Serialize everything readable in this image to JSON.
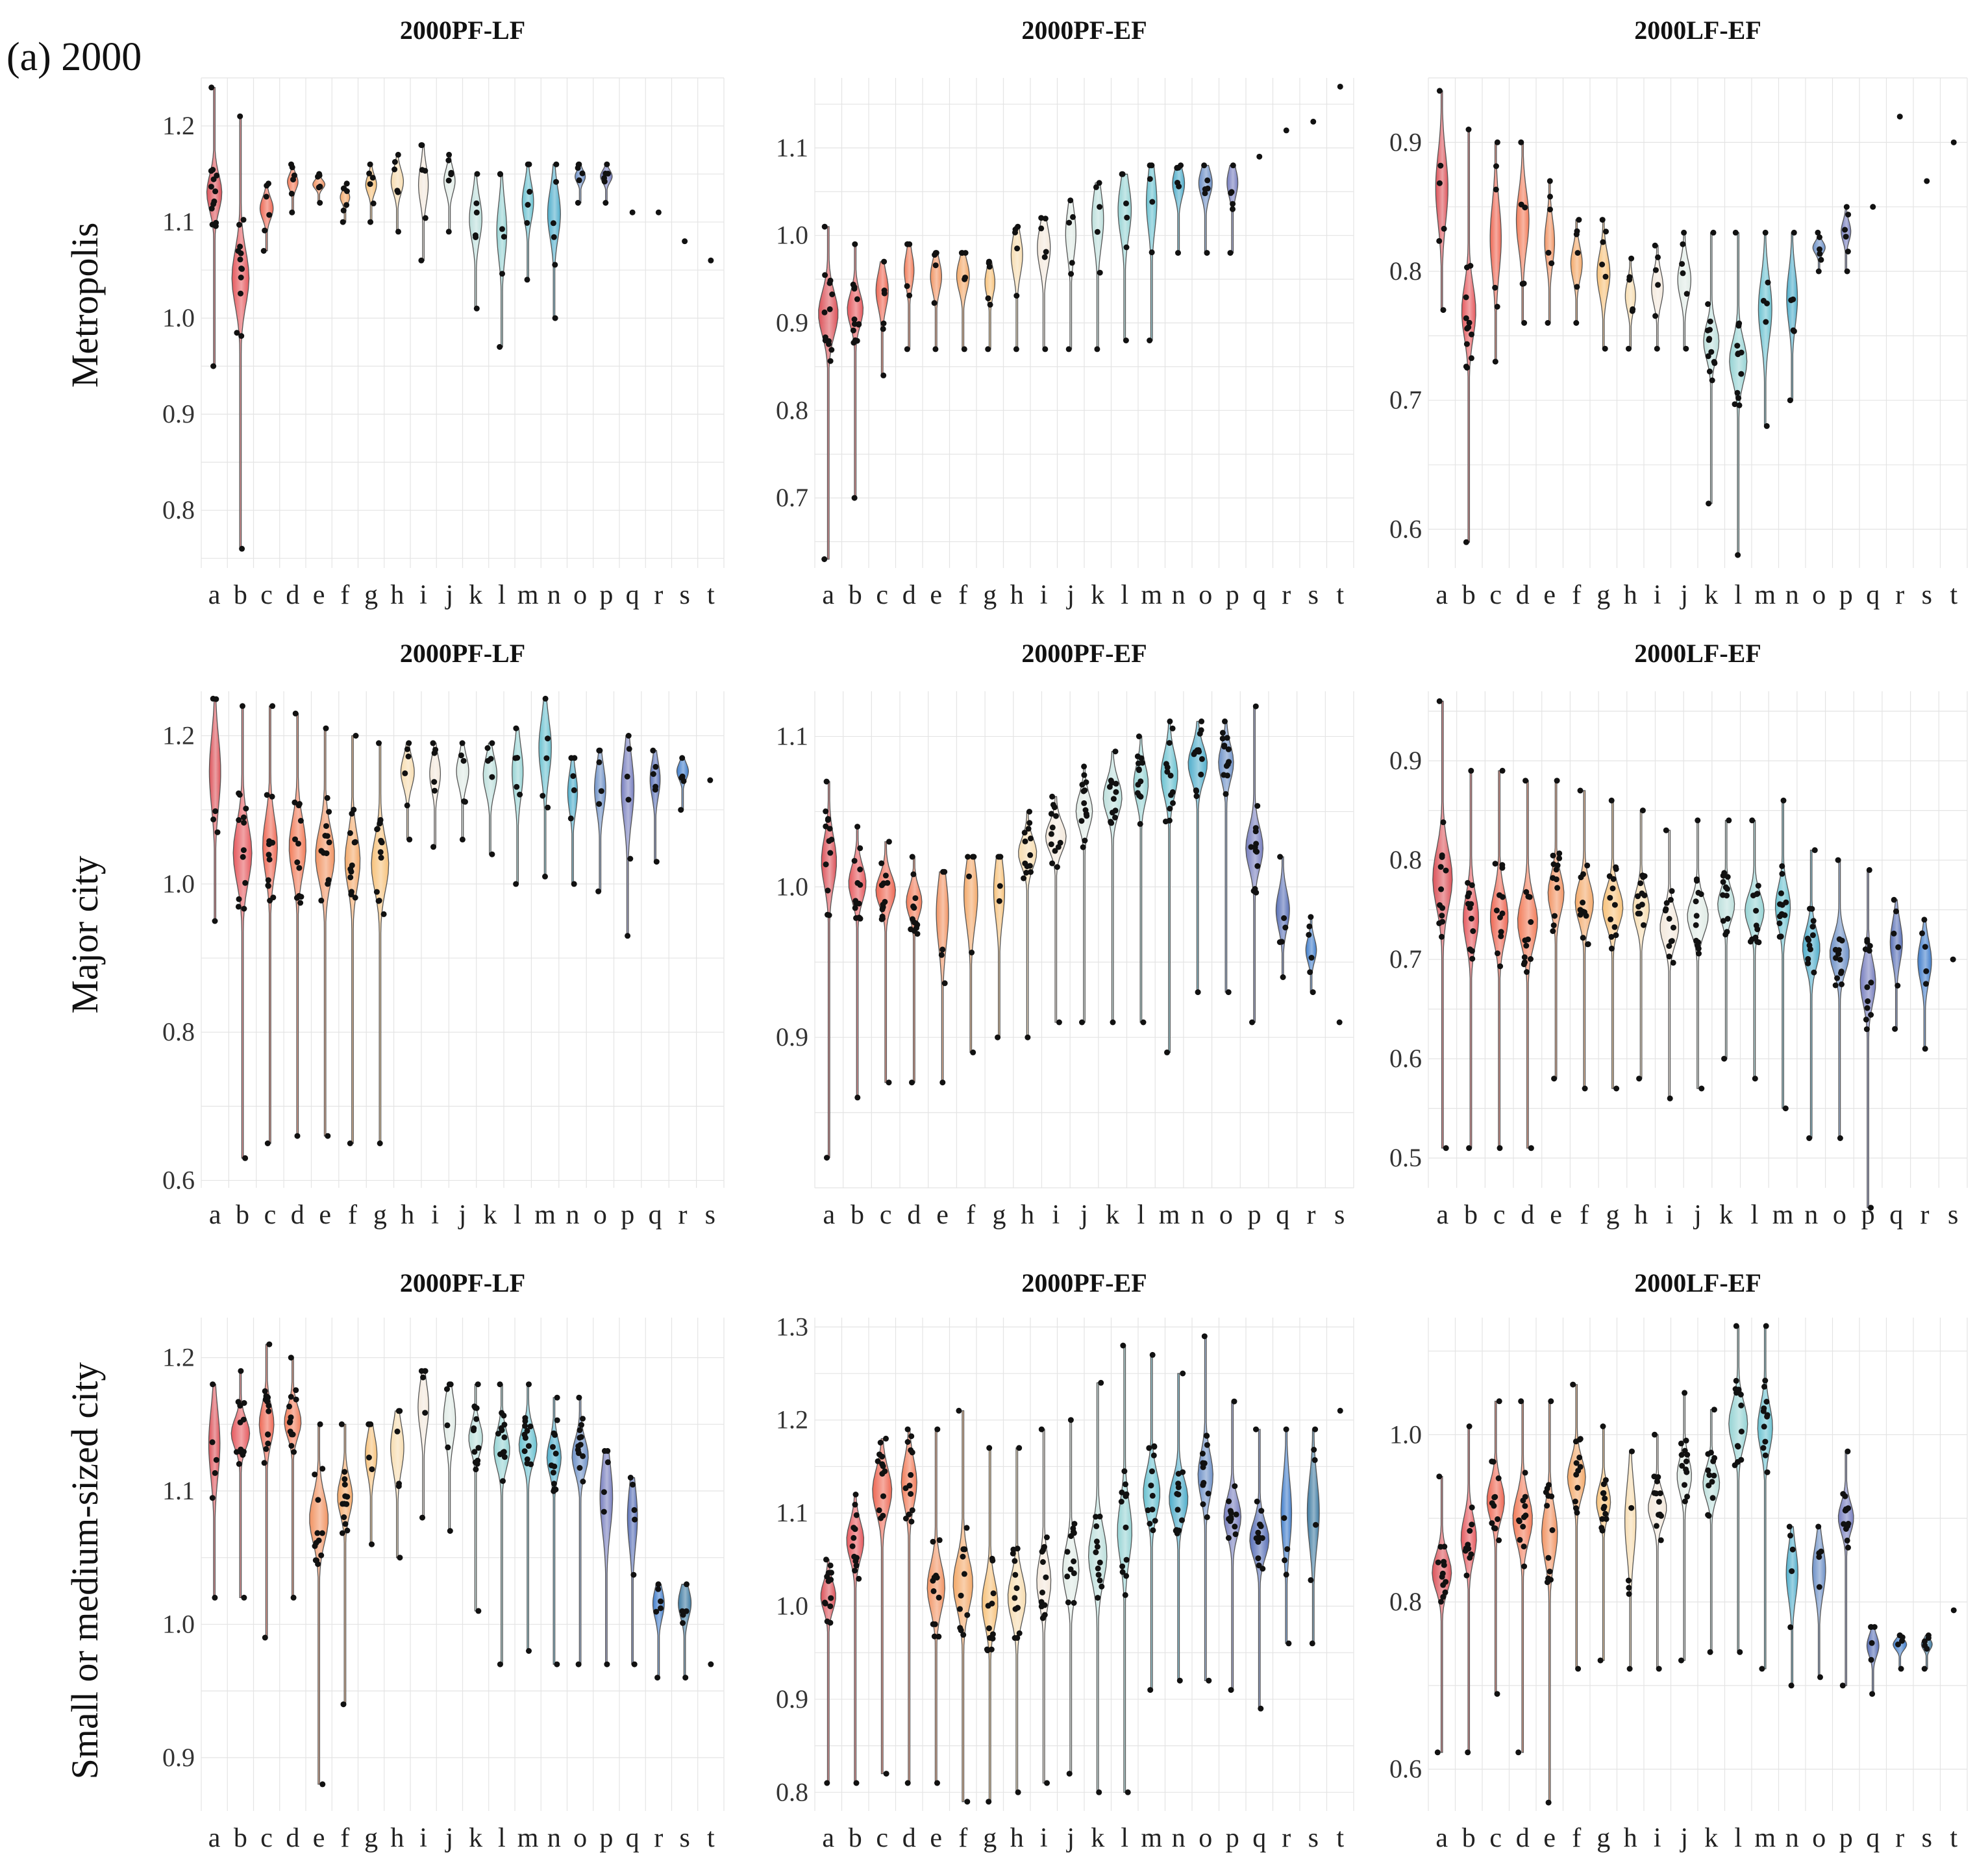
{
  "figure_label": "(a) 2000",
  "row_labels": [
    "Metropolis",
    "Major city",
    "Small or medium-sized city"
  ],
  "colors": {
    "palette": [
      "#d9434b",
      "#e34a4f",
      "#ec5a44",
      "#f1704a",
      "#f08a55",
      "#f2a15c",
      "#f6bc6e",
      "#f6d9a8",
      "#f2e6d8",
      "#dde9e3",
      "#b6dcd8",
      "#8ccfd0",
      "#5cbccc",
      "#3fa6c6",
      "#5f86c2",
      "#6a72b8",
      "#4a63b0",
      "#2f72c6",
      "#2d6f9a",
      "#1d5a6a",
      "#164e5a"
    ],
    "grid": "#e4e4e4",
    "points": "#111111",
    "outline": "#555555"
  },
  "chart_data": [
    {
      "type": "violin",
      "row": 0,
      "title": "2000PF-LF",
      "ylim": [
        0.74,
        1.25
      ],
      "yticks": [
        0.8,
        0.9,
        1.0,
        1.1,
        1.2
      ],
      "ytick_labels": [
        "0.8",
        "0.9",
        "1.0",
        "1.1",
        "1.2"
      ],
      "categories": [
        "a",
        "b",
        "c",
        "d",
        "e",
        "f",
        "g",
        "h",
        "i",
        "j",
        "k",
        "l",
        "m",
        "n",
        "o",
        "p",
        "q",
        "r",
        "s",
        "t"
      ],
      "ranges": [
        [
          0.95,
          1.24
        ],
        [
          0.76,
          1.21
        ],
        [
          1.07,
          1.14
        ],
        [
          1.11,
          1.16
        ],
        [
          1.12,
          1.15
        ],
        [
          1.1,
          1.14
        ],
        [
          1.1,
          1.16
        ],
        [
          1.09,
          1.17
        ],
        [
          1.06,
          1.18
        ],
        [
          1.09,
          1.17
        ],
        [
          1.01,
          1.15
        ],
        [
          0.97,
          1.15
        ],
        [
          1.04,
          1.16
        ],
        [
          1.0,
          1.16
        ],
        [
          1.12,
          1.16
        ],
        [
          1.12,
          1.16
        ],
        [
          1.11,
          1.11
        ],
        [
          1.11,
          1.11
        ],
        [
          1.08,
          1.08
        ],
        [
          1.06,
          1.06
        ]
      ]
    },
    {
      "type": "violin",
      "row": 0,
      "title": "2000PF-EF",
      "ylim": [
        0.62,
        1.18
      ],
      "yticks": [
        0.7,
        0.8,
        0.9,
        1.0,
        1.1
      ],
      "ytick_labels": [
        "0.7",
        "0.8",
        "0.9",
        "1.0",
        "1.1"
      ],
      "categories": [
        "a",
        "b",
        "c",
        "d",
        "e",
        "f",
        "g",
        "h",
        "i",
        "j",
        "k",
        "l",
        "m",
        "n",
        "o",
        "p",
        "q",
        "r",
        "s",
        "t"
      ],
      "ranges": [
        [
          0.63,
          1.01
        ],
        [
          0.7,
          0.99
        ],
        [
          0.84,
          0.97
        ],
        [
          0.87,
          0.99
        ],
        [
          0.87,
          0.98
        ],
        [
          0.87,
          0.98
        ],
        [
          0.87,
          0.97
        ],
        [
          0.87,
          1.01
        ],
        [
          0.87,
          1.02
        ],
        [
          0.87,
          1.04
        ],
        [
          0.87,
          1.06
        ],
        [
          0.88,
          1.07
        ],
        [
          0.88,
          1.08
        ],
        [
          0.98,
          1.08
        ],
        [
          0.98,
          1.08
        ],
        [
          0.98,
          1.08
        ],
        [
          1.09,
          1.09
        ],
        [
          1.12,
          1.12
        ],
        [
          1.13,
          1.13
        ],
        [
          1.17,
          1.17
        ]
      ]
    },
    {
      "type": "violin",
      "row": 0,
      "title": "2000LF-EF",
      "ylim": [
        0.57,
        0.95
      ],
      "yticks": [
        0.6,
        0.7,
        0.8,
        0.9
      ],
      "ytick_labels": [
        "0.6",
        "0.7",
        "0.8",
        "0.9"
      ],
      "categories": [
        "a",
        "b",
        "c",
        "d",
        "e",
        "f",
        "g",
        "h",
        "i",
        "j",
        "k",
        "l",
        "m",
        "n",
        "o",
        "p",
        "q",
        "r",
        "s",
        "t"
      ],
      "ranges": [
        [
          0.77,
          0.94
        ],
        [
          0.59,
          0.91
        ],
        [
          0.73,
          0.9
        ],
        [
          0.76,
          0.9
        ],
        [
          0.76,
          0.87
        ],
        [
          0.76,
          0.84
        ],
        [
          0.74,
          0.84
        ],
        [
          0.74,
          0.81
        ],
        [
          0.74,
          0.82
        ],
        [
          0.74,
          0.83
        ],
        [
          0.62,
          0.83
        ],
        [
          0.58,
          0.83
        ],
        [
          0.68,
          0.83
        ],
        [
          0.7,
          0.83
        ],
        [
          0.8,
          0.83
        ],
        [
          0.8,
          0.85
        ],
        [
          0.85,
          0.85
        ],
        [
          0.92,
          0.92
        ],
        [
          0.87,
          0.87
        ],
        [
          0.9,
          0.9
        ]
      ]
    },
    {
      "type": "violin",
      "row": 1,
      "title": "2000PF-LF",
      "ylim": [
        0.59,
        1.26
      ],
      "yticks": [
        0.6,
        0.8,
        1.0,
        1.2
      ],
      "ytick_labels": [
        "0.6",
        "0.8",
        "1.0",
        "1.2"
      ],
      "categories": [
        "a",
        "b",
        "c",
        "d",
        "e",
        "f",
        "g",
        "h",
        "i",
        "j",
        "k",
        "l",
        "m",
        "n",
        "o",
        "p",
        "q",
        "r",
        "s"
      ],
      "ranges": [
        [
          0.95,
          1.25
        ],
        [
          0.63,
          1.24
        ],
        [
          0.65,
          1.24
        ],
        [
          0.66,
          1.23
        ],
        [
          0.66,
          1.21
        ],
        [
          0.65,
          1.2
        ],
        [
          0.65,
          1.19
        ],
        [
          1.06,
          1.19
        ],
        [
          1.05,
          1.19
        ],
        [
          1.06,
          1.19
        ],
        [
          1.04,
          1.19
        ],
        [
          1.0,
          1.21
        ],
        [
          1.01,
          1.25
        ],
        [
          1.0,
          1.17
        ],
        [
          0.99,
          1.18
        ],
        [
          0.93,
          1.2
        ],
        [
          1.03,
          1.18
        ],
        [
          1.1,
          1.17
        ],
        [
          1.14,
          1.14
        ]
      ]
    },
    {
      "type": "violin",
      "row": 1,
      "title": "2000PF-EF",
      "ylim": [
        0.8,
        1.13
      ],
      "yticks": [
        0.9,
        1.0,
        1.1
      ],
      "ytick_labels": [
        "0.9",
        "1.0",
        "1.1"
      ],
      "categories": [
        "a",
        "b",
        "c",
        "d",
        "e",
        "f",
        "g",
        "h",
        "i",
        "j",
        "k",
        "l",
        "m",
        "n",
        "o",
        "p",
        "q",
        "r",
        "s"
      ],
      "ranges": [
        [
          0.82,
          1.07
        ],
        [
          0.86,
          1.04
        ],
        [
          0.87,
          1.03
        ],
        [
          0.87,
          1.02
        ],
        [
          0.87,
          1.01
        ],
        [
          0.89,
          1.02
        ],
        [
          0.9,
          1.02
        ],
        [
          0.9,
          1.05
        ],
        [
          0.91,
          1.06
        ],
        [
          0.91,
          1.08
        ],
        [
          0.91,
          1.09
        ],
        [
          0.91,
          1.1
        ],
        [
          0.89,
          1.11
        ],
        [
          0.93,
          1.11
        ],
        [
          0.93,
          1.11
        ],
        [
          0.91,
          1.12
        ],
        [
          0.94,
          1.02
        ],
        [
          0.93,
          0.98
        ],
        [
          0.91,
          0.91
        ]
      ]
    },
    {
      "type": "violin",
      "row": 1,
      "title": "2000LF-EF",
      "ylim": [
        0.47,
        0.97
      ],
      "yticks": [
        0.5,
        0.6,
        0.7,
        0.8,
        0.9
      ],
      "ytick_labels": [
        "0.5",
        "0.6",
        "0.7",
        "0.8",
        "0.9"
      ],
      "categories": [
        "a",
        "b",
        "c",
        "d",
        "e",
        "f",
        "g",
        "h",
        "i",
        "j",
        "k",
        "l",
        "m",
        "n",
        "o",
        "p",
        "q",
        "r",
        "s"
      ],
      "ranges": [
        [
          0.51,
          0.96
        ],
        [
          0.51,
          0.89
        ],
        [
          0.51,
          0.89
        ],
        [
          0.51,
          0.88
        ],
        [
          0.58,
          0.88
        ],
        [
          0.57,
          0.87
        ],
        [
          0.57,
          0.86
        ],
        [
          0.58,
          0.85
        ],
        [
          0.56,
          0.83
        ],
        [
          0.57,
          0.84
        ],
        [
          0.6,
          0.84
        ],
        [
          0.58,
          0.84
        ],
        [
          0.55,
          0.86
        ],
        [
          0.52,
          0.81
        ],
        [
          0.52,
          0.8
        ],
        [
          0.45,
          0.79
        ],
        [
          0.63,
          0.76
        ],
        [
          0.61,
          0.74
        ],
        [
          0.7,
          0.7
        ]
      ]
    },
    {
      "type": "violin",
      "row": 2,
      "title": "2000PF-LF",
      "ylim": [
        0.86,
        1.23
      ],
      "yticks": [
        0.9,
        1.0,
        1.1,
        1.2
      ],
      "ytick_labels": [
        "0.9",
        "1.0",
        "1.1",
        "1.2"
      ],
      "categories": [
        "a",
        "b",
        "c",
        "d",
        "e",
        "f",
        "g",
        "h",
        "i",
        "j",
        "k",
        "l",
        "m",
        "n",
        "o",
        "p",
        "q",
        "r",
        "s",
        "t"
      ],
      "ranges": [
        [
          1.02,
          1.18
        ],
        [
          1.02,
          1.19
        ],
        [
          0.99,
          1.21
        ],
        [
          1.02,
          1.2
        ],
        [
          0.88,
          1.15
        ],
        [
          0.94,
          1.15
        ],
        [
          1.06,
          1.15
        ],
        [
          1.05,
          1.16
        ],
        [
          1.08,
          1.19
        ],
        [
          1.07,
          1.18
        ],
        [
          1.01,
          1.18
        ],
        [
          0.97,
          1.18
        ],
        [
          0.98,
          1.18
        ],
        [
          0.97,
          1.17
        ],
        [
          0.97,
          1.17
        ],
        [
          0.97,
          1.13
        ],
        [
          0.97,
          1.11
        ],
        [
          0.96,
          1.03
        ],
        [
          0.96,
          1.03
        ],
        [
          0.97,
          0.97
        ]
      ]
    },
    {
      "type": "violin",
      "row": 2,
      "title": "2000PF-EF",
      "ylim": [
        0.78,
        1.31
      ],
      "yticks": [
        0.8,
        0.9,
        1.0,
        1.1,
        1.2,
        1.3
      ],
      "ytick_labels": [
        "0.8",
        "0.9",
        "1.0",
        "1.1",
        "1.2",
        "1.3"
      ],
      "categories": [
        "a",
        "b",
        "c",
        "d",
        "e",
        "f",
        "g",
        "h",
        "i",
        "j",
        "k",
        "l",
        "m",
        "n",
        "o",
        "p",
        "q",
        "r",
        "s",
        "t"
      ],
      "ranges": [
        [
          0.81,
          1.05
        ],
        [
          0.81,
          1.12
        ],
        [
          0.82,
          1.18
        ],
        [
          0.81,
          1.19
        ],
        [
          0.81,
          1.19
        ],
        [
          0.79,
          1.21
        ],
        [
          0.79,
          1.17
        ],
        [
          0.8,
          1.17
        ],
        [
          0.81,
          1.19
        ],
        [
          0.82,
          1.2
        ],
        [
          0.8,
          1.24
        ],
        [
          0.8,
          1.28
        ],
        [
          0.91,
          1.27
        ],
        [
          0.92,
          1.25
        ],
        [
          0.92,
          1.29
        ],
        [
          0.91,
          1.22
        ],
        [
          0.89,
          1.19
        ],
        [
          0.96,
          1.19
        ],
        [
          0.96,
          1.19
        ],
        [
          1.21,
          1.21
        ]
      ]
    },
    {
      "type": "violin",
      "row": 2,
      "title": "2000LF-EF",
      "ylim": [
        0.55,
        1.14
      ],
      "yticks": [
        0.6,
        0.8,
        1.0
      ],
      "ytick_labels": [
        "0.6",
        "0.8",
        "1.0"
      ],
      "categories": [
        "a",
        "b",
        "c",
        "d",
        "e",
        "f",
        "g",
        "h",
        "i",
        "j",
        "k",
        "l",
        "m",
        "n",
        "o",
        "p",
        "q",
        "r",
        "s",
        "t"
      ],
      "ranges": [
        [
          0.62,
          0.95
        ],
        [
          0.62,
          1.01
        ],
        [
          0.69,
          1.04
        ],
        [
          0.62,
          1.04
        ],
        [
          0.56,
          1.04
        ],
        [
          0.72,
          1.06
        ],
        [
          0.73,
          1.01
        ],
        [
          0.72,
          0.98
        ],
        [
          0.72,
          1.0
        ],
        [
          0.73,
          1.05
        ],
        [
          0.74,
          1.03
        ],
        [
          0.74,
          1.13
        ],
        [
          0.72,
          1.13
        ],
        [
          0.7,
          0.89
        ],
        [
          0.71,
          0.89
        ],
        [
          0.7,
          0.98
        ],
        [
          0.69,
          0.77
        ],
        [
          0.72,
          0.76
        ],
        [
          0.72,
          0.76
        ],
        [
          0.79,
          0.79
        ]
      ]
    }
  ]
}
